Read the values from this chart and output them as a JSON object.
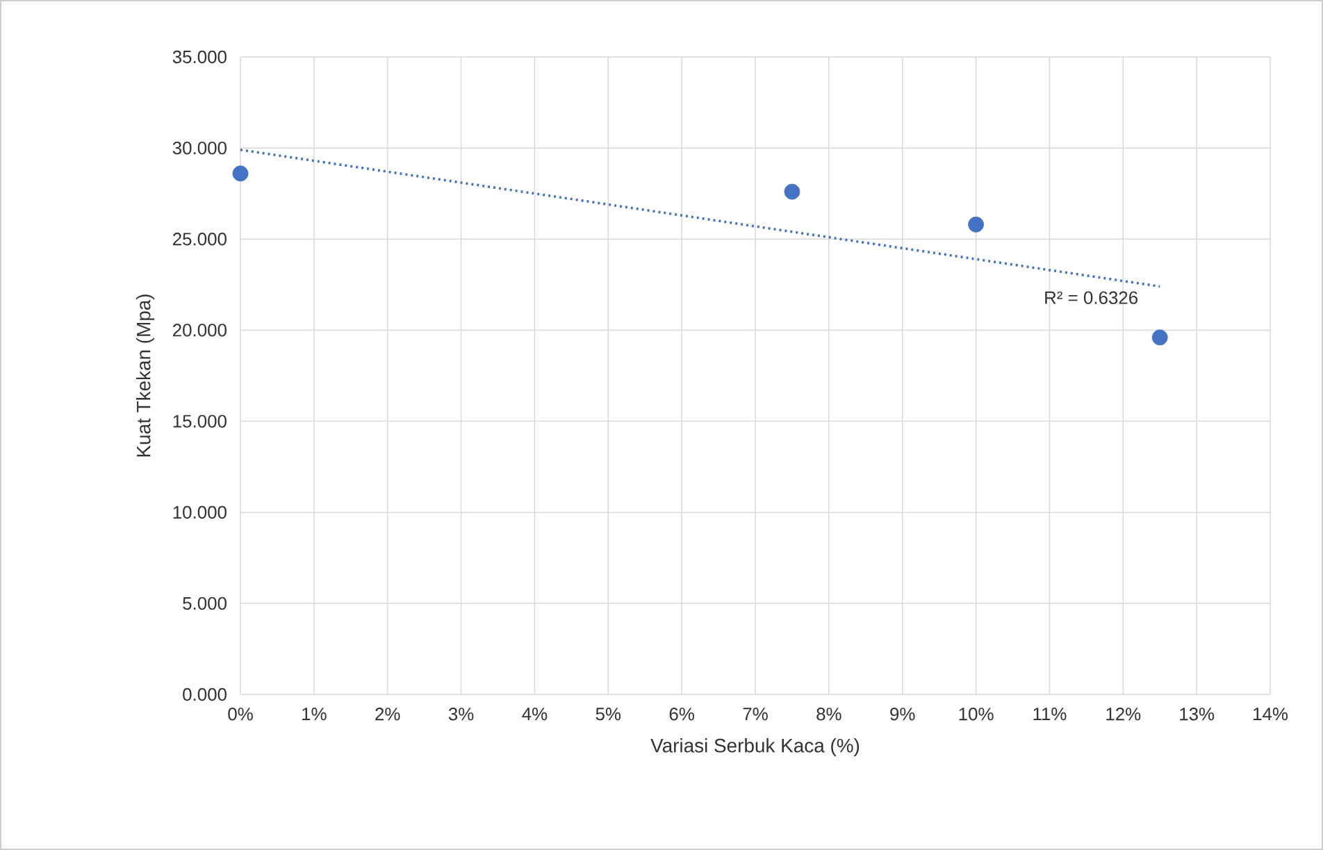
{
  "chart_data": {
    "type": "scatter",
    "xlabel": "Variasi Serbuk Kaca (%)",
    "ylabel": "Kuat Tkekan (Mpa)",
    "series": [
      {
        "color": "#4472c4",
        "x": [
          0,
          7.5,
          10,
          12.5
        ],
        "values": [
          28.6,
          27.6,
          25.8,
          19.6
        ],
        "marker": "circle"
      },
      {
        "type": "line",
        "color": "#4472c4",
        "x": [
          0,
          12.5
        ],
        "values": [
          29.9,
          22.4
        ],
        "line_style": "dotted",
        "marker": "none"
      }
    ],
    "annotations": [
      "R² = 0.6326"
    ],
    "xlim": [
      0,
      14
    ],
    "ylim": [
      0,
      35
    ],
    "xticks": [
      {
        "value": 0,
        "label": "0%"
      },
      {
        "value": 1,
        "label": "1%"
      },
      {
        "value": 2,
        "label": "2%"
      },
      {
        "value": 3,
        "label": "3%"
      },
      {
        "value": 4,
        "label": "4%"
      },
      {
        "value": 5,
        "label": "5%"
      },
      {
        "value": 6,
        "label": "6%"
      },
      {
        "value": 7,
        "label": "7%"
      },
      {
        "value": 8,
        "label": "8%"
      },
      {
        "value": 9,
        "label": "9%"
      },
      {
        "value": 10,
        "label": "10%"
      },
      {
        "value": 11,
        "label": "11%"
      },
      {
        "value": 12,
        "label": "12%"
      },
      {
        "value": 13,
        "label": "13%"
      },
      {
        "value": 14,
        "label": "14%"
      }
    ],
    "yticks": [
      {
        "value": 0,
        "label": "0.000"
      },
      {
        "value": 5,
        "label": "5.000"
      },
      {
        "value": 10,
        "label": "10.000"
      },
      {
        "value": 15,
        "label": "15.000"
      },
      {
        "value": 20,
        "label": "20.000"
      },
      {
        "value": 25,
        "label": "25.000"
      },
      {
        "value": 30,
        "label": "30.000"
      },
      {
        "value": 35,
        "label": "35.000"
      }
    ],
    "grid": true
  }
}
